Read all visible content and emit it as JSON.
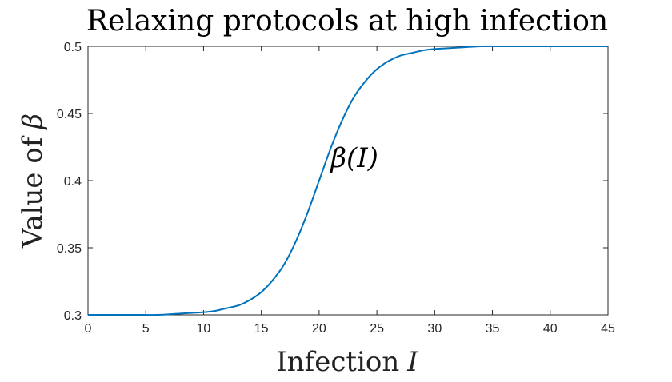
{
  "chart_data": {
    "type": "line",
    "title": "Relaxing protocols at high infection",
    "xlabel": {
      "text": "Infection",
      "symbol": "I"
    },
    "ylabel": {
      "text": "Value of",
      "symbol": "β"
    },
    "xlim": [
      0,
      45
    ],
    "ylim": [
      0.3,
      0.5
    ],
    "xticks": [
      0,
      5,
      10,
      15,
      20,
      25,
      30,
      35,
      40,
      45
    ],
    "yticks": [
      0.3,
      0.35,
      0.4,
      0.45,
      0.5
    ],
    "ytick_labels": [
      "0.3",
      "0.35",
      "0.4",
      "0.45",
      "0.5"
    ],
    "grid": false,
    "box": true,
    "series": [
      {
        "color": "#0072BD",
        "x": [
          0,
          2,
          4,
          6,
          8,
          10,
          11,
          12,
          13,
          14,
          15,
          16,
          17,
          18,
          19,
          20,
          21,
          22,
          23,
          24,
          25,
          26,
          27,
          28,
          29,
          30,
          32,
          34,
          36,
          38,
          40,
          42,
          45
        ],
        "y": [
          0.3,
          0.3,
          0.3,
          0.3,
          0.301,
          0.302,
          0.303,
          0.305,
          0.307,
          0.311,
          0.317,
          0.326,
          0.338,
          0.355,
          0.376,
          0.4,
          0.424,
          0.445,
          0.462,
          0.474,
          0.483,
          0.489,
          0.493,
          0.495,
          0.497,
          0.498,
          0.499,
          0.5,
          0.5,
          0.5,
          0.5,
          0.5,
          0.5
        ]
      }
    ],
    "annotations": [
      {
        "text": "β(I)",
        "x": 21,
        "y": 0.41
      }
    ]
  }
}
